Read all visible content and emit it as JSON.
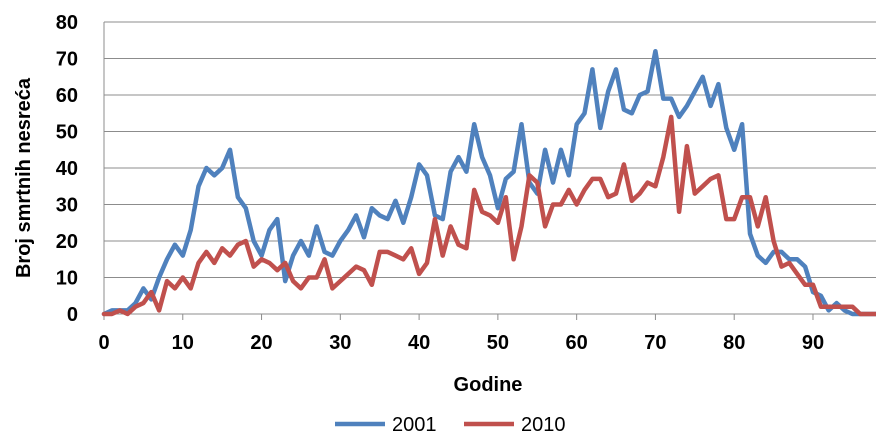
{
  "chart_data": {
    "type": "line",
    "xlabel": "Godine",
    "ylabel": "Broj smrtnih nesreća",
    "xlim": [
      0,
      98
    ],
    "ylim": [
      0,
      80
    ],
    "x_ticks": [
      0,
      10,
      20,
      30,
      40,
      50,
      60,
      70,
      80,
      90
    ],
    "y_ticks": [
      0,
      10,
      20,
      30,
      40,
      50,
      60,
      70,
      80
    ],
    "grid": true,
    "legend_position": "bottom",
    "x": [
      0,
      1,
      2,
      3,
      4,
      5,
      6,
      7,
      8,
      9,
      10,
      11,
      12,
      13,
      14,
      15,
      16,
      17,
      18,
      19,
      20,
      21,
      22,
      23,
      24,
      25,
      26,
      27,
      28,
      29,
      30,
      31,
      32,
      33,
      34,
      35,
      36,
      37,
      38,
      39,
      40,
      41,
      42,
      43,
      44,
      45,
      46,
      47,
      48,
      49,
      50,
      51,
      52,
      53,
      54,
      55,
      56,
      57,
      58,
      59,
      60,
      61,
      62,
      63,
      64,
      65,
      66,
      67,
      68,
      69,
      70,
      71,
      72,
      73,
      74,
      75,
      76,
      77,
      78,
      79,
      80,
      81,
      82,
      83,
      84,
      85,
      86,
      87,
      88,
      89,
      90,
      91,
      92,
      93,
      94,
      95,
      96,
      97,
      98
    ],
    "series": [
      {
        "name": "2001",
        "color": "#4f81bd",
        "values": [
          0,
          1,
          1,
          1,
          3,
          7,
          4,
          10,
          15,
          19,
          16,
          23,
          35,
          40,
          38,
          40,
          45,
          32,
          29,
          20,
          16,
          23,
          26,
          9,
          16,
          20,
          16,
          24,
          17,
          16,
          20,
          23,
          27,
          21,
          29,
          27,
          26,
          31,
          25,
          32,
          41,
          38,
          27,
          26,
          39,
          43,
          39,
          52,
          43,
          38,
          29,
          37,
          39,
          52,
          36,
          33,
          45,
          36,
          45,
          38,
          52,
          55,
          67,
          51,
          61,
          67,
          56,
          55,
          60,
          61,
          72,
          59,
          59,
          54,
          57,
          61,
          65,
          57,
          63,
          51,
          45,
          52,
          22,
          16,
          14,
          17,
          17,
          15,
          15,
          13,
          6,
          5,
          1,
          3,
          1,
          0,
          0,
          0,
          0
        ]
      },
      {
        "name": "2010",
        "color": "#c0504d",
        "values": [
          0,
          0,
          1,
          0,
          2,
          3,
          6,
          1,
          9,
          7,
          10,
          7,
          14,
          17,
          14,
          18,
          16,
          19,
          20,
          13,
          15,
          14,
          12,
          14,
          9,
          7,
          10,
          10,
          15,
          7,
          9,
          11,
          13,
          12,
          8,
          17,
          17,
          16,
          15,
          18,
          11,
          14,
          26,
          16,
          24,
          19,
          18,
          34,
          28,
          27,
          25,
          32,
          15,
          24,
          38,
          36,
          24,
          30,
          30,
          34,
          30,
          34,
          37,
          37,
          32,
          33,
          41,
          31,
          33,
          36,
          35,
          43,
          54,
          28,
          46,
          33,
          35,
          37,
          38,
          26,
          26,
          32,
          32,
          24,
          32,
          20,
          13,
          14,
          11,
          8,
          8,
          2,
          2,
          2,
          2,
          2,
          0,
          0,
          0
        ]
      }
    ]
  }
}
